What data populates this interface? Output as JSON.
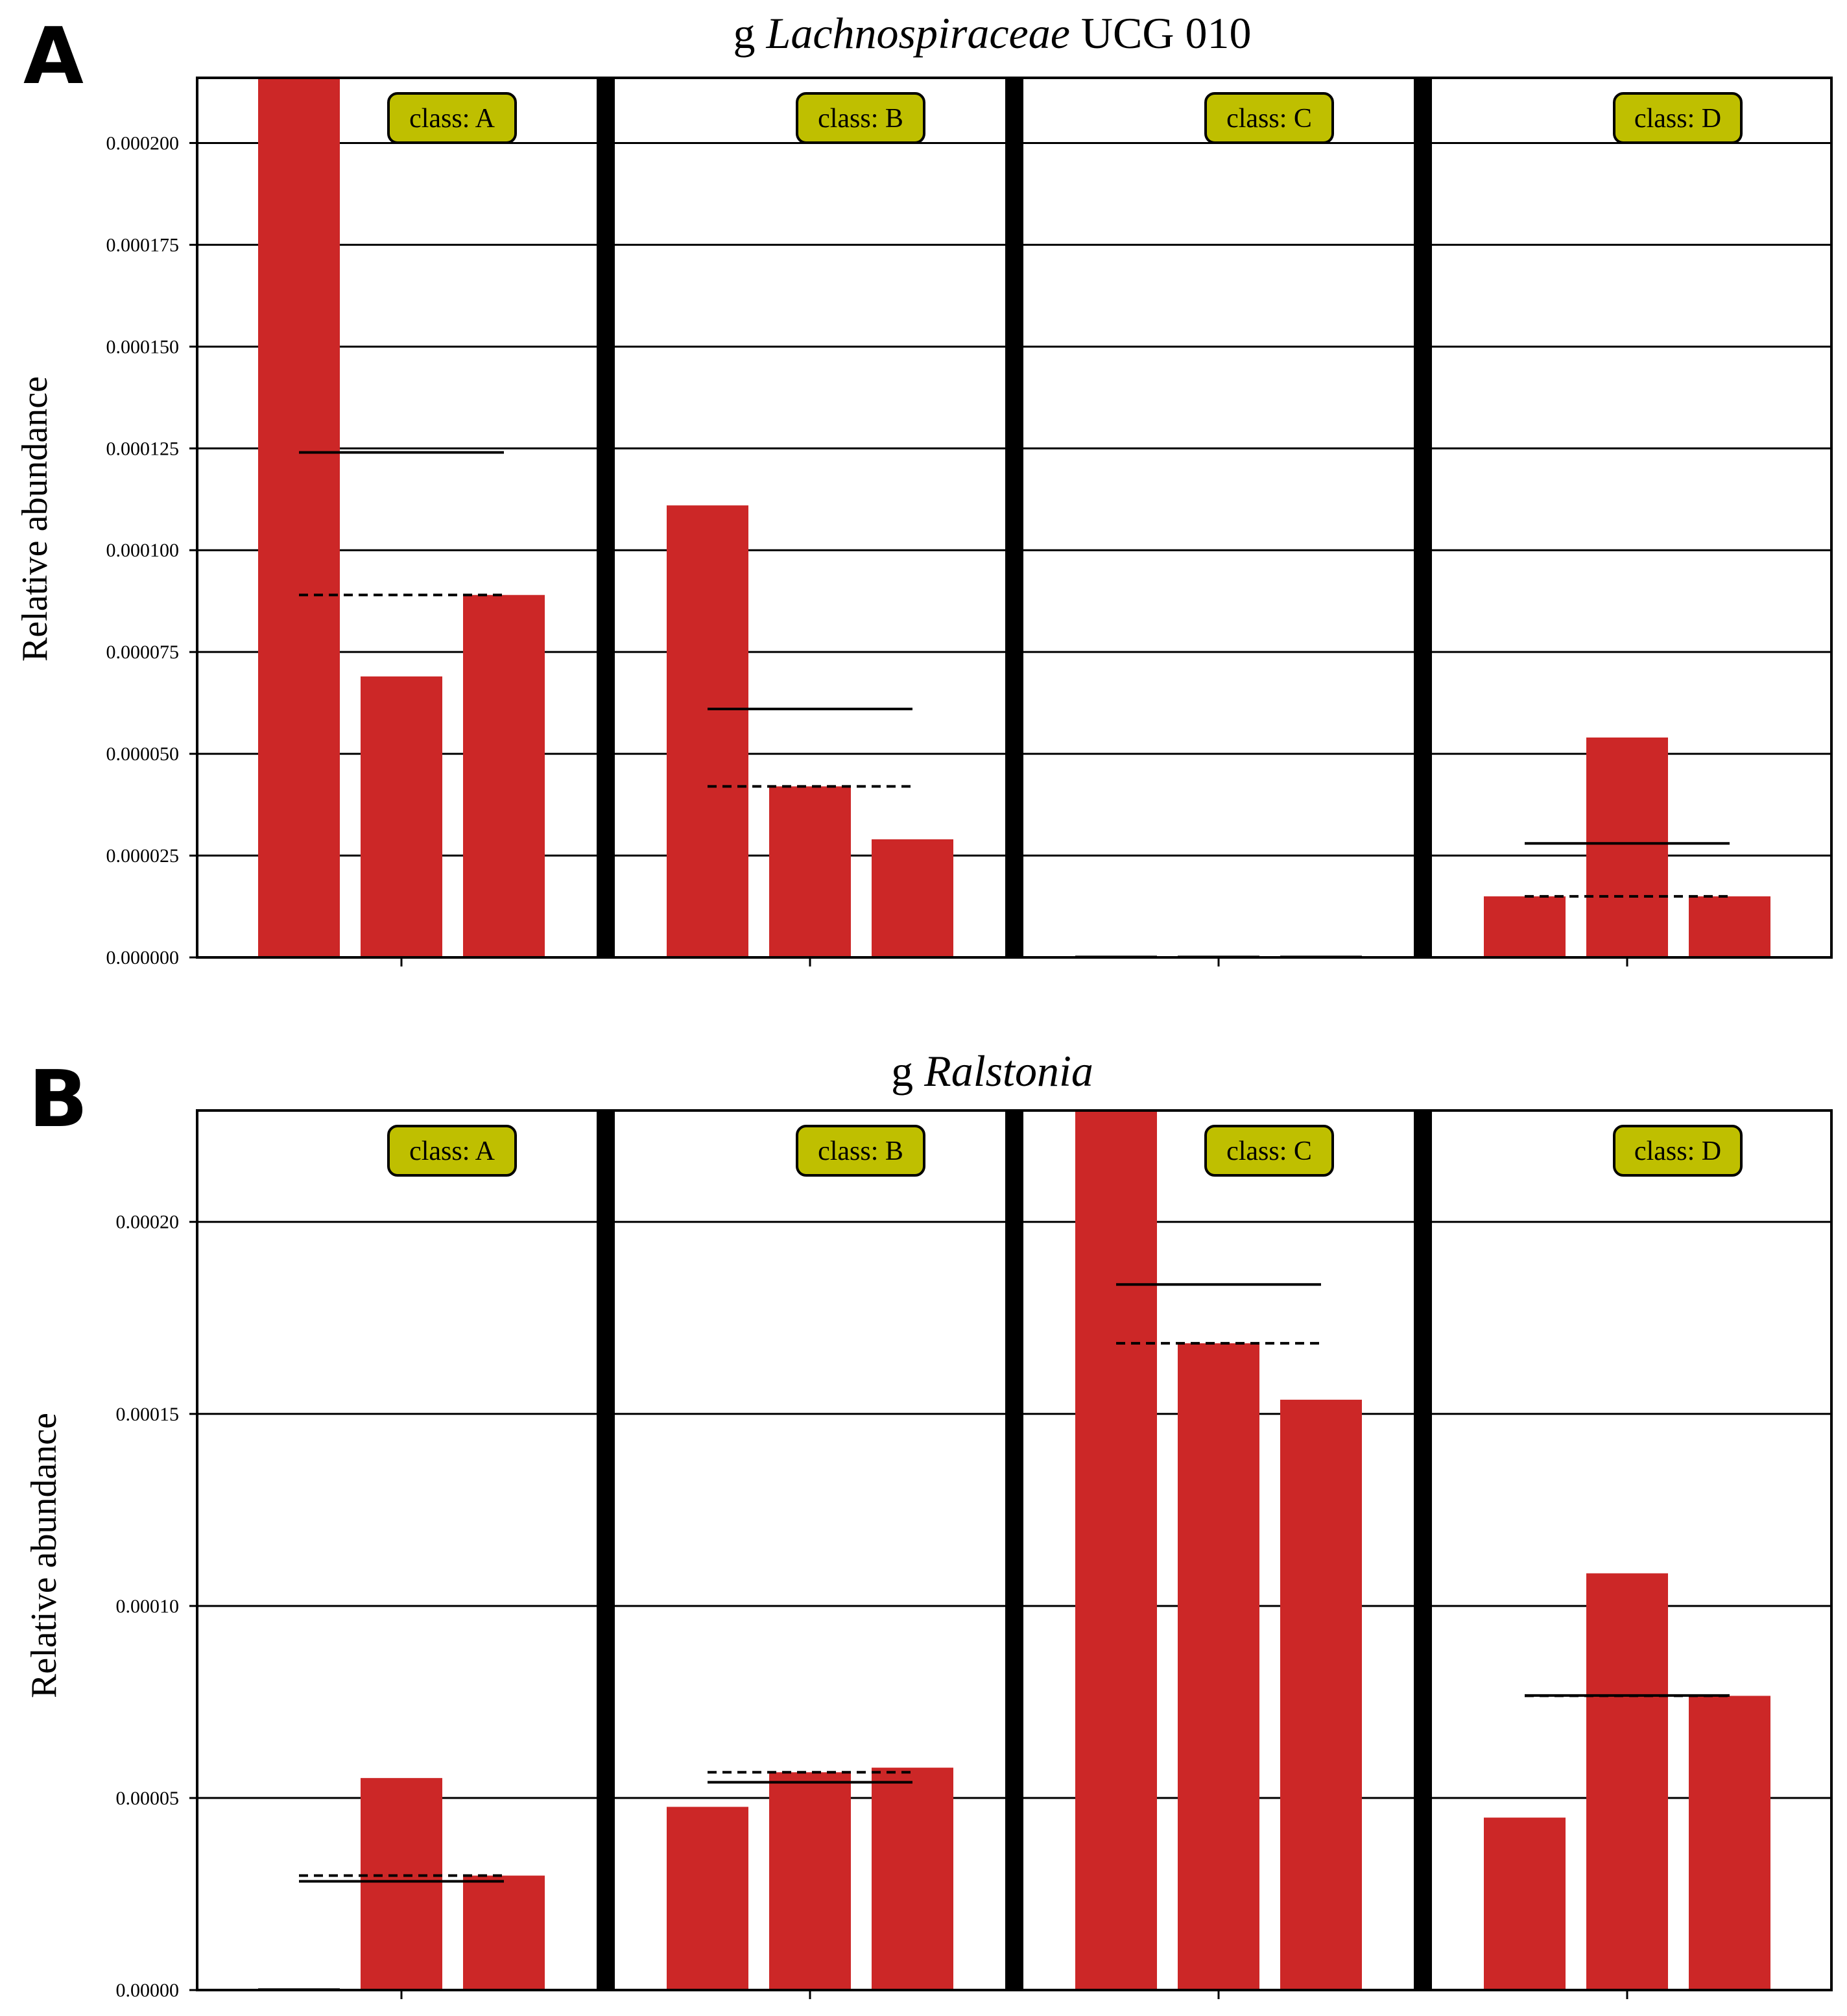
{
  "chart_data": [
    {
      "type": "bar",
      "panel_label": "A",
      "title_prefix": "g",
      "title_taxon": "Lachnospiraceae",
      "title_suffix": "UCG 010",
      "ylabel": "Relative abundance",
      "xlabel": "",
      "ylim": [
        0,
        0.000216
      ],
      "yticks": [
        0.0,
        2.5e-05,
        5e-05,
        7.5e-05,
        0.0001,
        0.000125,
        0.00015,
        0.000175,
        0.0002
      ],
      "ytick_labels": [
        "0.000000",
        "0.000025",
        "0.000050",
        "0.000075",
        "0.000100",
        "0.000125",
        "0.000150",
        "0.000175",
        "0.000200"
      ],
      "grid": "horizontal",
      "bar_color": "#cc2727",
      "groups": [
        {
          "label": "class: A",
          "values": [
            0.000216,
            6.9e-05,
            8.9e-05
          ],
          "mean": 0.000124,
          "median": 8.9e-05
        },
        {
          "label": "class: B",
          "values": [
            0.000111,
            4.2e-05,
            2.9e-05
          ],
          "mean": 6.1e-05,
          "median": 4.2e-05
        },
        {
          "label": "class: C",
          "values": [
            0.0,
            0.0,
            0.0
          ],
          "mean": 0.0,
          "median": 0.0
        },
        {
          "label": "class: D",
          "values": [
            1.5e-05,
            5.4e-05,
            1.5e-05
          ],
          "mean": 2.8e-05,
          "median": 1.5e-05
        }
      ]
    },
    {
      "type": "bar",
      "panel_label": "B",
      "title_prefix": "g",
      "title_taxon": "Ralstonia",
      "title_suffix": "",
      "ylabel": "Relative abundance",
      "xlabel": "",
      "ylim": [
        0,
        0.000229
      ],
      "yticks": [
        0.0,
        5e-05,
        0.0001,
        0.00015,
        0.0002
      ],
      "ytick_labels": [
        "0.00000",
        "0.00005",
        "0.00010",
        "0.00015",
        "0.00020"
      ],
      "grid": "horizontal",
      "bar_color": "#cc2727",
      "groups": [
        {
          "label": "class: A",
          "values": [
            0.0,
            5.52e-05,
            2.98e-05
          ],
          "mean": 2.83e-05,
          "median": 2.98e-05
        },
        {
          "label": "class: B",
          "values": [
            4.77e-05,
            5.67e-05,
            5.79e-05
          ],
          "mean": 5.41e-05,
          "median": 5.67e-05
        },
        {
          "label": "class: C",
          "values": [
            0.000229,
            0.0001684,
            0.0001537
          ],
          "mean": 0.0001837,
          "median": 0.0001684
        },
        {
          "label": "class: D",
          "values": [
            4.49e-05,
            0.0001085,
            7.66e-05
          ],
          "mean": 7.67e-05,
          "median": 7.66e-05
        }
      ]
    }
  ]
}
